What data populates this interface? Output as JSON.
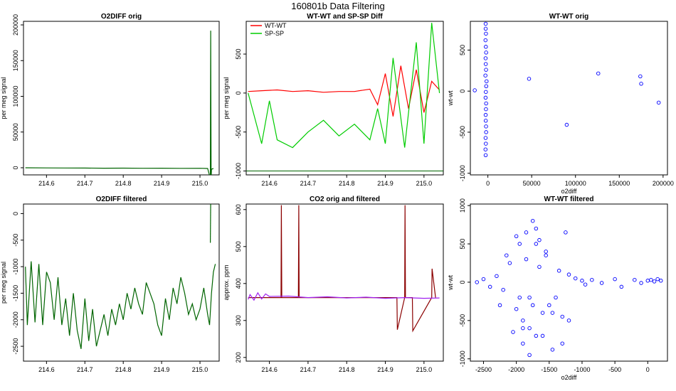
{
  "figure": {
    "title": "160801b   Data Filtering"
  },
  "chart_data": [
    {
      "type": "line",
      "title": "O2DIFF orig",
      "xlabel": "",
      "ylabel": "per meg signal",
      "xlim": [
        214.54,
        215.05
      ],
      "ylim": [
        -10000,
        205000
      ],
      "xticks": [
        "214.6",
        "214.7",
        "214.8",
        "214.9",
        "215.0"
      ],
      "yticks": [
        "0",
        "50000",
        "100000",
        "150000",
        "200000"
      ],
      "series": [
        {
          "color": "#006400",
          "x": [
            214.545,
            214.6,
            214.65,
            214.7,
            214.75,
            214.8,
            214.85,
            214.9,
            214.95,
            215.0,
            215.02,
            215.027,
            215.028,
            215.029,
            215.03,
            215.035
          ],
          "y": [
            0,
            -200,
            -300,
            -400,
            -600,
            -500,
            -700,
            -600,
            -800,
            -700,
            -1000,
            -15000,
            192000,
            -15000,
            -2000,
            -1000
          ]
        }
      ]
    },
    {
      "type": "line",
      "title": "WT-WT and SP-SP Diff",
      "xlabel": "",
      "ylabel": "per meg signal",
      "xlim": [
        214.54,
        215.05
      ],
      "ylim": [
        -1050,
        920
      ],
      "xticks": [
        "214.6",
        "214.7",
        "214.8",
        "214.9",
        "215.0"
      ],
      "yticks": [
        "-1000",
        "-500",
        "0",
        "500"
      ],
      "hline": -1000,
      "legend": [
        "WT-WT",
        "SP-SP"
      ],
      "series": [
        {
          "name": "WT-WT",
          "color": "#ff0000",
          "x": [
            214.545,
            214.58,
            214.62,
            214.66,
            214.7,
            214.74,
            214.78,
            214.82,
            214.86,
            214.88,
            214.9,
            214.92,
            214.94,
            214.96,
            214.98,
            215.0,
            215.02,
            215.04
          ],
          "y": [
            20,
            30,
            40,
            20,
            30,
            10,
            20,
            20,
            50,
            -150,
            250,
            -300,
            350,
            -200,
            300,
            -250,
            150,
            40
          ]
        },
        {
          "name": "SP-SP",
          "color": "#00cc00",
          "x": [
            214.545,
            214.58,
            214.6,
            214.62,
            214.66,
            214.7,
            214.74,
            214.78,
            214.82,
            214.86,
            214.88,
            214.9,
            214.92,
            214.95,
            214.98,
            215.0,
            215.02,
            215.04
          ],
          "y": [
            0,
            -650,
            -100,
            -600,
            -700,
            -500,
            -350,
            -550,
            -400,
            -600,
            -200,
            -650,
            450,
            -700,
            650,
            -650,
            900,
            0
          ]
        }
      ]
    },
    {
      "type": "scatter",
      "title": "WT-WT orig",
      "xlabel": "o2diff",
      "ylabel": "wt-wt",
      "xlim": [
        -20000,
        205000
      ],
      "ylim": [
        -1020,
        850
      ],
      "xticks": [
        "0",
        "50000",
        "100000",
        "150000",
        "200000"
      ],
      "yticks": [
        "-1000",
        "-500",
        "0",
        "500"
      ],
      "series": [
        {
          "color": "#0000ff",
          "x": [
            -2500,
            -2500,
            -2200,
            -2700,
            -2300,
            -2000,
            -2600,
            -2400,
            -2100,
            -2800,
            -1500,
            -1900,
            -2300,
            -2600,
            -2000,
            -2200,
            -2500,
            -2400,
            -2100,
            -2000,
            -2600,
            -2300,
            -2700,
            -2500,
            -15000,
            47000,
            90000,
            126000,
            174000,
            175000,
            195000
          ],
          "y": [
            820,
            760,
            700,
            620,
            540,
            470,
            400,
            330,
            260,
            190,
            120,
            60,
            -10,
            -80,
            -150,
            -220,
            -290,
            -360,
            -430,
            -500,
            -570,
            -640,
            -710,
            -780,
            10,
            150,
            -410,
            215,
            180,
            90,
            -140
          ]
        }
      ]
    },
    {
      "type": "line",
      "title": "O2DIFF filtered",
      "xlabel": "",
      "ylabel": "per meg signal",
      "xlim": [
        214.54,
        215.05
      ],
      "ylim": [
        -2780,
        180
      ],
      "xticks": [
        "214.6",
        "214.7",
        "214.8",
        "214.9",
        "215.0"
      ],
      "yticks": [
        "-2500",
        "-2000",
        "-1500",
        "-1000",
        "-500",
        "0"
      ],
      "series": [
        {
          "color": "#006400",
          "x": [
            214.545,
            214.55,
            214.56,
            214.57,
            214.58,
            214.59,
            214.6,
            214.61,
            214.62,
            214.63,
            214.64,
            214.65,
            214.66,
            214.67,
            214.68,
            214.69,
            214.7,
            214.71,
            214.72,
            214.73,
            214.74,
            214.75,
            214.76,
            214.77,
            214.78,
            214.79,
            214.8,
            214.81,
            214.82,
            214.83,
            214.84,
            214.85,
            214.86,
            214.87,
            214.88,
            214.89,
            214.9,
            214.91,
            214.92,
            214.93,
            214.94,
            214.95,
            214.96,
            214.97,
            214.98,
            214.99,
            215.0,
            215.01,
            215.02,
            215.025,
            215.03,
            215.035,
            215.04
          ],
          "y": [
            -1000,
            -2100,
            -900,
            -2050,
            -950,
            -2100,
            -1100,
            -1300,
            -2000,
            -1200,
            -2100,
            -1600,
            -2300,
            -1500,
            -2200,
            -2550,
            -1600,
            -2400,
            -1800,
            -2500,
            -2200,
            -1900,
            -2300,
            -1800,
            -2100,
            -1700,
            -2000,
            -1500,
            -1800,
            -1400,
            -1700,
            -1900,
            -1300,
            -1500,
            -1700,
            -2100,
            -2300,
            -1600,
            -2000,
            -1400,
            -1700,
            -1200,
            -1500,
            -1900,
            -1700,
            -2000,
            -1800,
            -1400,
            -1900,
            -2100,
            -1500,
            -1100,
            -950
          ]
        },
        {
          "color": "#006400",
          "x": [
            215.027,
            215.028
          ],
          "y": [
            -550,
            250
          ]
        }
      ]
    },
    {
      "type": "line",
      "title": "CO2 orig and filtered",
      "xlabel": "",
      "ylabel": "approx. ppm",
      "xlim": [
        214.54,
        215.05
      ],
      "ylim": [
        190,
        615
      ],
      "xticks": [
        "214.6",
        "214.7",
        "214.8",
        "214.9",
        "215.0"
      ],
      "yticks": [
        "200",
        "300",
        "400",
        "500",
        "600"
      ],
      "series": [
        {
          "name": "orig",
          "color": "#8b0000",
          "x": [
            214.545,
            214.6,
            214.63,
            214.631,
            214.632,
            214.65,
            214.675,
            214.676,
            214.677,
            214.7,
            214.8,
            214.9,
            214.93,
            214.931,
            214.95,
            214.951,
            214.952,
            214.97,
            214.971,
            215.02,
            215.021,
            215.03
          ],
          "y": [
            362,
            362,
            362,
            612,
            362,
            362,
            362,
            612,
            362,
            362,
            362,
            362,
            362,
            275,
            362,
            612,
            362,
            362,
            272,
            362,
            440,
            362
          ]
        },
        {
          "name": "filtered",
          "color": "#a020f0",
          "x": [
            214.545,
            214.55,
            214.56,
            214.57,
            214.58,
            214.59,
            214.6,
            214.65,
            214.7,
            214.75,
            214.8,
            214.85,
            214.9,
            214.95,
            215.0,
            215.04
          ],
          "y": [
            357,
            370,
            355,
            375,
            358,
            372,
            365,
            366,
            362,
            364,
            361,
            363,
            360,
            362,
            360,
            361
          ]
        }
      ]
    },
    {
      "type": "scatter",
      "title": "WT-WT filtered",
      "xlabel": "o2diff",
      "ylabel": "wt-wt",
      "xlim": [
        -2700,
        300
      ],
      "ylim": [
        -1030,
        1020
      ],
      "xticks": [
        "-2500",
        "-2000",
        "-1500",
        "-1000",
        "-500",
        "0"
      ],
      "yticks": [
        "-1000",
        "-500",
        "0",
        "500",
        "1000"
      ],
      "series": [
        {
          "color": "#0000ff",
          "x": [
            -2600,
            -2500,
            -2400,
            -2300,
            -2200,
            -2100,
            -2000,
            -1950,
            -1900,
            -1850,
            -1800,
            -1750,
            -1700,
            -1650,
            -1600,
            -1550,
            -1500,
            -1450,
            -1400,
            -1350,
            -1300,
            -1250,
            -1200,
            -1100,
            -1000,
            -950,
            -2000,
            -1900,
            -1800,
            -1700,
            -1850,
            -1750,
            -1650,
            -1950,
            -1550,
            -1450,
            -2050,
            -1900,
            -1700,
            -1600,
            -1300,
            -1200,
            -2150,
            -2250,
            -1800,
            -850,
            -700,
            -500,
            -400,
            -200,
            -100,
            0,
            50,
            100,
            150,
            200
          ],
          "y": [
            0,
            40,
            -60,
            80,
            -100,
            250,
            -350,
            500,
            -500,
            650,
            -600,
            800,
            -700,
            550,
            -400,
            350,
            -300,
            -880,
            -200,
            150,
            -450,
            650,
            100,
            50,
            20,
            -30,
            600,
            -800,
            -950,
            700,
            300,
            -300,
            200,
            -200,
            400,
            -400,
            -650,
            -600,
            500,
            -700,
            -800,
            -500,
            350,
            -300,
            -200,
            30,
            -10,
            40,
            -60,
            30,
            -10,
            20,
            30,
            10,
            40,
            20
          ]
        }
      ]
    }
  ]
}
